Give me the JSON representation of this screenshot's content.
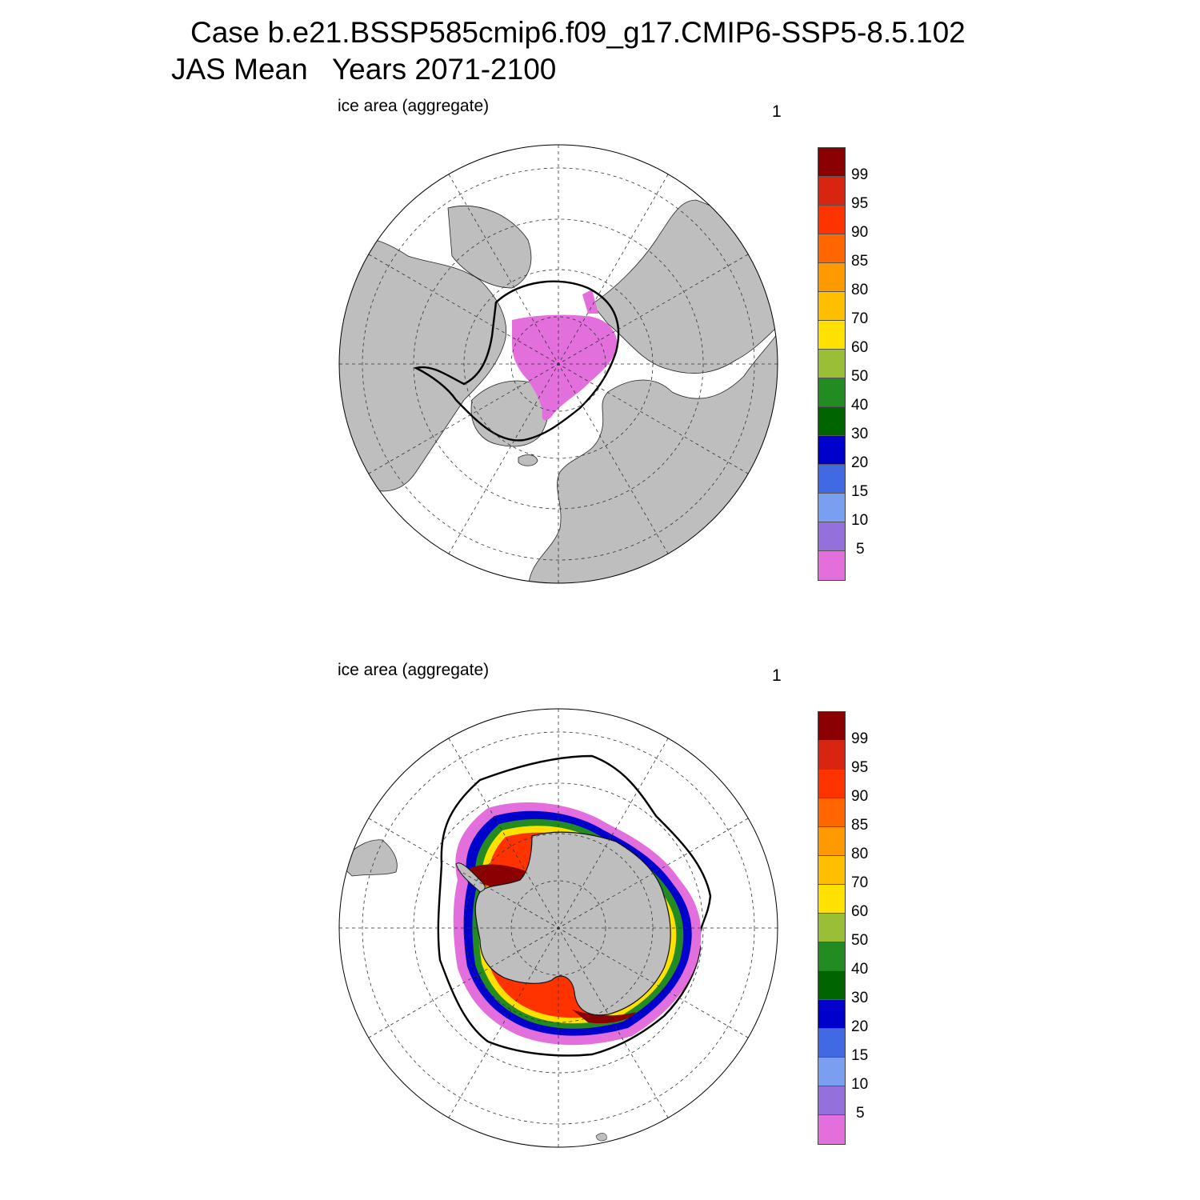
{
  "title": {
    "line1": "Case b.e21.BSSP585cmip6.f09_g17.CMIP6-SSP5-8.5.102",
    "line2": "JAS Mean   Years 2071-2100"
  },
  "panels": [
    {
      "label": "ice area  (aggregate)",
      "number": "1",
      "hemisphere": "north"
    },
    {
      "label": "ice area  (aggregate)",
      "number": "1",
      "hemisphere": "south"
    }
  ],
  "colorbar": {
    "labels": [
      "99",
      "95",
      "90",
      "85",
      "80",
      "70",
      "60",
      "50",
      "40",
      "30",
      "20",
      "15",
      "10",
      "5"
    ],
    "colors": [
      "#8b0000",
      "#d8250f",
      "#ff3300",
      "#ff6600",
      "#ff9900",
      "#ffbf00",
      "#ffe100",
      "#9abe36",
      "#228b22",
      "#006400",
      "#0000cd",
      "#4169e1",
      "#7b9ff0",
      "#9370db",
      "#e36fdc"
    ]
  },
  "map_colors": {
    "land": "#bebebe",
    "ocean": "#ffffff",
    "ice_edge_contour": "#000000"
  }
}
